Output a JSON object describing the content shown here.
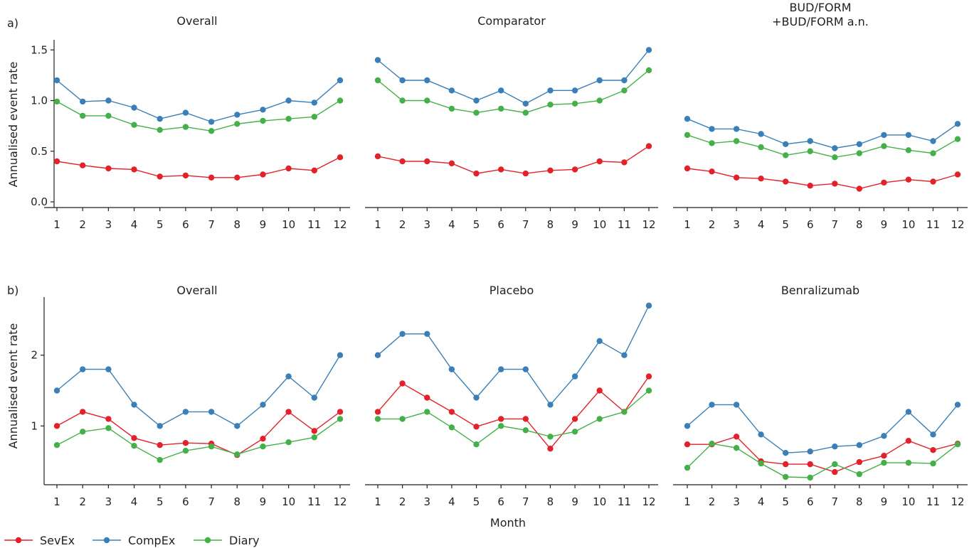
{
  "figure": {
    "xlabel": "Month",
    "ylabel": "Annualised event rate"
  },
  "legend": [
    {
      "name": "SevEx",
      "color": "#e3212b"
    },
    {
      "name": "CompEx",
      "color": "#3a7fb8"
    },
    {
      "name": "Diary",
      "color": "#45b04a"
    }
  ],
  "chart_data": [
    {
      "type": "line",
      "row": "a",
      "panel_label": "a)",
      "title": "Overall",
      "x": [
        1,
        2,
        3,
        4,
        5,
        6,
        7,
        8,
        9,
        10,
        11,
        12
      ],
      "ylim": [
        0,
        1.6
      ],
      "yticks": [
        0.0,
        0.5,
        1.0,
        1.5
      ],
      "ytick_labels": [
        "0.0",
        "0.5",
        "1.0",
        "1.5"
      ],
      "series": [
        {
          "name": "SevEx",
          "values": [
            0.4,
            0.36,
            0.33,
            0.32,
            0.25,
            0.26,
            0.24,
            0.24,
            0.27,
            0.33,
            0.31,
            0.44
          ]
        },
        {
          "name": "CompEx",
          "values": [
            1.2,
            0.99,
            1.0,
            0.93,
            0.82,
            0.88,
            0.79,
            0.86,
            0.91,
            1.0,
            0.98,
            1.2
          ]
        },
        {
          "name": "Diary",
          "values": [
            0.99,
            0.85,
            0.85,
            0.76,
            0.71,
            0.74,
            0.7,
            0.77,
            0.8,
            0.82,
            0.84,
            1.0
          ]
        }
      ]
    },
    {
      "type": "line",
      "row": "a",
      "title": "Comparator",
      "x": [
        1,
        2,
        3,
        4,
        5,
        6,
        7,
        8,
        9,
        10,
        11,
        12
      ],
      "ylim": [
        0,
        1.6
      ],
      "series": [
        {
          "name": "SevEx",
          "values": [
            0.45,
            0.4,
            0.4,
            0.38,
            0.28,
            0.32,
            0.28,
            0.31,
            0.32,
            0.4,
            0.39,
            0.55
          ]
        },
        {
          "name": "CompEx",
          "values": [
            1.4,
            1.2,
            1.2,
            1.1,
            1.0,
            1.1,
            0.97,
            1.1,
            1.1,
            1.2,
            1.2,
            1.5
          ]
        },
        {
          "name": "Diary",
          "values": [
            1.2,
            1.0,
            1.0,
            0.92,
            0.88,
            0.92,
            0.88,
            0.96,
            0.97,
            1.0,
            1.1,
            1.3
          ]
        }
      ]
    },
    {
      "type": "line",
      "row": "a",
      "title": "BUD/FORM\n+BUD/FORM a.n.",
      "x": [
        1,
        2,
        3,
        4,
        5,
        6,
        7,
        8,
        9,
        10,
        11,
        12
      ],
      "ylim": [
        0,
        1.6
      ],
      "series": [
        {
          "name": "SevEx",
          "values": [
            0.33,
            0.3,
            0.24,
            0.23,
            0.2,
            0.16,
            0.18,
            0.13,
            0.19,
            0.22,
            0.2,
            0.27
          ]
        },
        {
          "name": "CompEx",
          "values": [
            0.82,
            0.72,
            0.72,
            0.67,
            0.57,
            0.6,
            0.53,
            0.57,
            0.66,
            0.66,
            0.6,
            0.77
          ]
        },
        {
          "name": "Diary",
          "values": [
            0.66,
            0.58,
            0.6,
            0.54,
            0.46,
            0.5,
            0.44,
            0.48,
            0.55,
            0.51,
            0.48,
            0.62
          ]
        }
      ]
    },
    {
      "type": "line",
      "row": "b",
      "panel_label": "b)",
      "title": "Overall",
      "x": [
        1,
        2,
        3,
        4,
        5,
        6,
        7,
        8,
        9,
        10,
        11,
        12
      ],
      "ylim": [
        0.17,
        2.8
      ],
      "yticks": [
        1,
        2
      ],
      "ytick_labels": [
        "1",
        "2"
      ],
      "series": [
        {
          "name": "SevEx",
          "values": [
            1.0,
            1.2,
            1.1,
            0.83,
            0.73,
            0.76,
            0.75,
            0.59,
            0.82,
            1.2,
            0.93,
            1.2
          ]
        },
        {
          "name": "CompEx",
          "values": [
            1.5,
            1.8,
            1.8,
            1.3,
            1.0,
            1.2,
            1.2,
            1.0,
            1.3,
            1.7,
            1.4,
            2.0
          ]
        },
        {
          "name": "Diary",
          "values": [
            0.73,
            0.92,
            0.97,
            0.72,
            0.52,
            0.65,
            0.71,
            0.6,
            0.71,
            0.77,
            0.84,
            1.1
          ]
        }
      ]
    },
    {
      "type": "line",
      "row": "b",
      "title": "Placebo",
      "x": [
        1,
        2,
        3,
        4,
        5,
        6,
        7,
        8,
        9,
        10,
        11,
        12
      ],
      "ylim": [
        0.17,
        2.8
      ],
      "series": [
        {
          "name": "SevEx",
          "values": [
            1.2,
            1.6,
            1.4,
            1.2,
            0.99,
            1.1,
            1.1,
            0.68,
            1.1,
            1.5,
            1.2,
            1.7
          ]
        },
        {
          "name": "CompEx",
          "values": [
            2.0,
            2.3,
            2.3,
            1.8,
            1.4,
            1.8,
            1.8,
            1.3,
            1.7,
            2.2,
            2.0,
            2.7
          ]
        },
        {
          "name": "Diary",
          "values": [
            1.1,
            1.1,
            1.2,
            0.98,
            0.74,
            1.0,
            0.94,
            0.85,
            0.92,
            1.1,
            1.2,
            1.5
          ]
        }
      ]
    },
    {
      "type": "line",
      "row": "b",
      "title": "Benralizumab",
      "x": [
        1,
        2,
        3,
        4,
        5,
        6,
        7,
        8,
        9,
        10,
        11,
        12
      ],
      "ylim": [
        0.17,
        2.8
      ],
      "series": [
        {
          "name": "SevEx",
          "values": [
            0.74,
            0.74,
            0.85,
            0.5,
            0.46,
            0.46,
            0.35,
            0.49,
            0.58,
            0.79,
            0.66,
            0.75
          ]
        },
        {
          "name": "CompEx",
          "values": [
            1.0,
            1.3,
            1.3,
            0.88,
            0.62,
            0.64,
            0.71,
            0.73,
            0.86,
            1.2,
            0.88,
            1.3
          ]
        },
        {
          "name": "Diary",
          "values": [
            0.41,
            0.75,
            0.69,
            0.47,
            0.28,
            0.27,
            0.46,
            0.32,
            0.48,
            0.48,
            0.47,
            0.74
          ]
        }
      ]
    }
  ]
}
